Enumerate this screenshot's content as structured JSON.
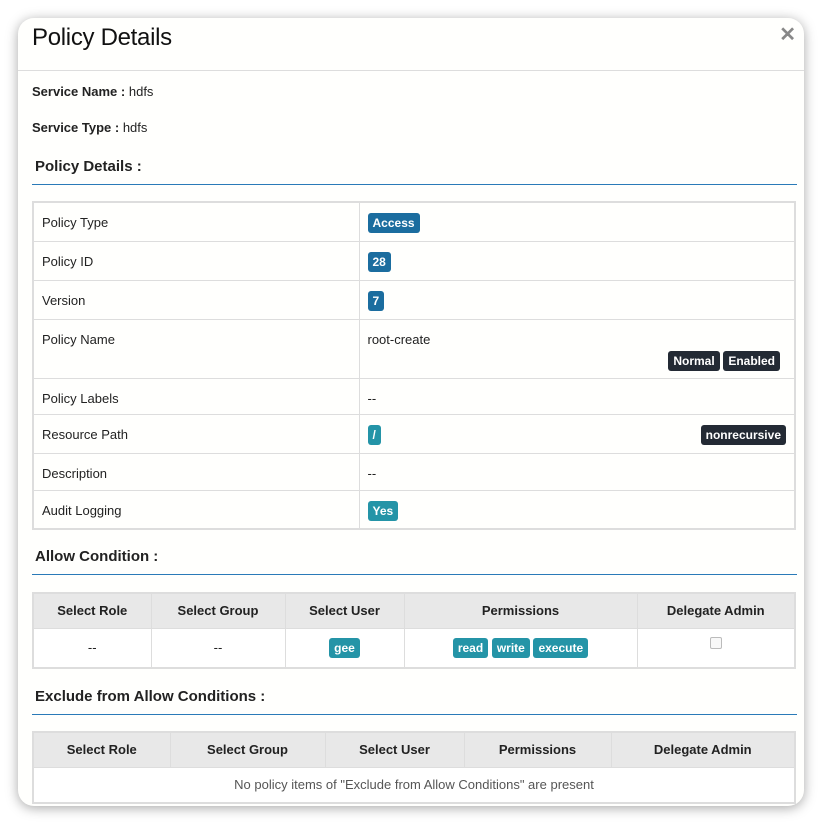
{
  "modal": {
    "title": "Policy Details",
    "close_icon": "close-icon"
  },
  "service": {
    "name_label": "Service Name :",
    "name": "hdfs",
    "type_label": "Service Type :",
    "type": "hdfs"
  },
  "policy_section": {
    "title": "Policy Details :",
    "rows": [
      {
        "label": "Policy Type",
        "value": "Access"
      },
      {
        "label": "Policy ID",
        "value": "28"
      },
      {
        "label": "Version",
        "value": "7"
      },
      {
        "label": "Policy Name",
        "value": "root-create",
        "badges": [
          "Normal",
          "Enabled"
        ]
      },
      {
        "label": "Policy Labels",
        "value": "--"
      },
      {
        "label": "Resource Path",
        "value": "/",
        "badge": "nonrecursive"
      },
      {
        "label": "Description",
        "value": "--"
      },
      {
        "label": "Audit Logging",
        "value": "Yes"
      }
    ]
  },
  "allow": {
    "title": "Allow Condition :",
    "headers": [
      "Select Role",
      "Select Group",
      "Select User",
      "Permissions",
      "Delegate Admin"
    ],
    "row": {
      "role": "--",
      "group": "--",
      "user": "gee",
      "permissions": [
        "read",
        "write",
        "execute"
      ],
      "delegate_admin": false
    }
  },
  "exclude": {
    "title": "Exclude from Allow Conditions :",
    "headers": [
      "Select Role",
      "Select Group",
      "Select User",
      "Permissions",
      "Delegate Admin"
    ],
    "empty": "No policy items of \"Exclude from Allow Conditions\" are present"
  },
  "colors": {
    "badge_blue": "#1b6d9f",
    "badge_teal": "#2494a7",
    "badge_dark": "#232a34",
    "section_rule": "#2a7ab8"
  }
}
